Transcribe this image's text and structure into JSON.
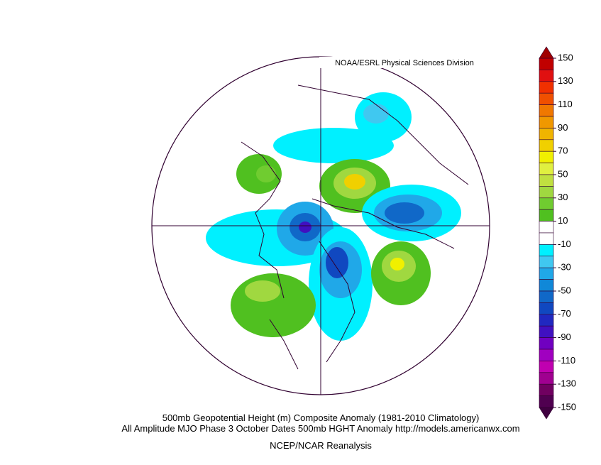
{
  "header": {
    "credit": "NOAA/ESRL Physical Sciences Division"
  },
  "caption": {
    "line1": "500mb Geopotential Height (m) Composite Anomaly (1981-2010 Climatology)",
    "line2": "All Amplitude MJO Phase 3 October Dates 500mb HGHT Anomaly http://models.americanwx.com",
    "line3": "NCEP/NCAR Reanalysis"
  },
  "colorbar": {
    "ticks": [
      150,
      130,
      110,
      90,
      70,
      50,
      30,
      10,
      -10,
      -30,
      -50,
      -70,
      -90,
      -110,
      -130,
      -150
    ],
    "over_color": "#a00000",
    "under_color": "#400040",
    "colors": [
      "#c00000",
      "#e01010",
      "#f03000",
      "#f05000",
      "#f07800",
      "#f09800",
      "#f0b400",
      "#f0d000",
      "#f0f000",
      "#e0f040",
      "#c0e040",
      "#a0d840",
      "#70cc30",
      "#50c020",
      "#ffffff",
      "#ffffff",
      "#00f0ff",
      "#40c8f0",
      "#20a8e8",
      "#1088d8",
      "#1068c8",
      "#1048c0",
      "#2028c0",
      "#4010c0",
      "#7000c0",
      "#a000c0",
      "#c000b0",
      "#a00090",
      "#700060",
      "#500050"
    ]
  }
}
